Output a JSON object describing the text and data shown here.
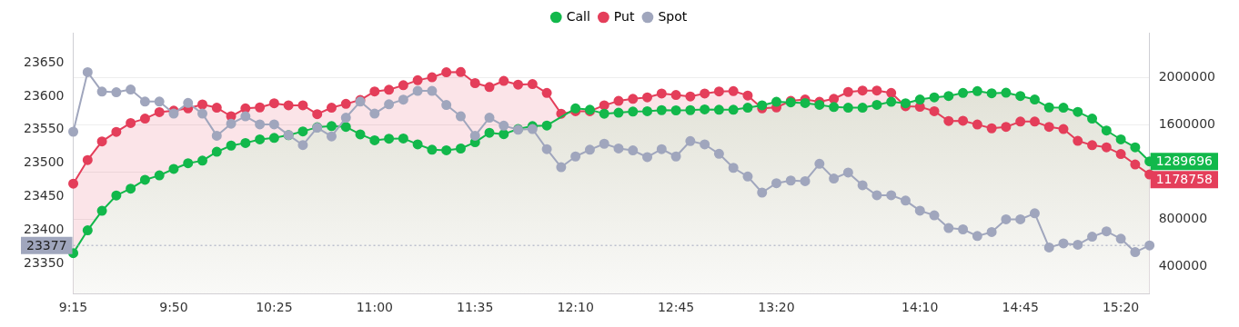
{
  "chart_data": {
    "type": "line",
    "categories": [
      "9:15",
      null,
      null,
      null,
      null,
      null,
      null,
      "9:50",
      null,
      null,
      null,
      null,
      null,
      null,
      "10:25",
      null,
      null,
      null,
      null,
      null,
      null,
      "11:00",
      null,
      null,
      null,
      null,
      null,
      null,
      "11:35",
      null,
      null,
      null,
      null,
      null,
      null,
      "12:10",
      null,
      null,
      null,
      null,
      null,
      null,
      "12:45",
      null,
      null,
      null,
      null,
      null,
      null,
      "13:20",
      null,
      null,
      null,
      null,
      null,
      null,
      null,
      null,
      null,
      "14:10",
      null,
      null,
      null,
      null,
      null,
      null,
      "14:45",
      null,
      null,
      null,
      null,
      null,
      null,
      "15:20",
      null,
      null
    ],
    "series": [
      {
        "name": "Call",
        "type": "area",
        "axis": "y2",
        "color": "#12b84b",
        "values": [
          513000,
          706000,
          871000,
          1001000,
          1059000,
          1134000,
          1171000,
          1226000,
          1274000,
          1296000,
          1371000,
          1424000,
          1446000,
          1476000,
          1489000,
          1512000,
          1544000,
          1579000,
          1589000,
          1582000,
          1519000,
          1469000,
          1482000,
          1484000,
          1434000,
          1389000,
          1384000,
          1399000,
          1452000,
          1532000,
          1521000,
          1564000,
          1589000,
          1594000,
          null,
          1739000,
          1727000,
          1694000,
          1702000,
          1712000,
          1715000,
          1724000,
          1722000,
          1724000,
          1730000,
          1727000,
          1727000,
          1745000,
          1765000,
          1795000,
          1790000,
          1784000,
          1769000,
          1750000,
          1745000,
          1745000,
          1769000,
          1795000,
          1782000,
          1814000,
          1832000,
          1844000,
          1870000,
          1885000,
          1867000,
          1872000,
          1844000,
          1814000,
          1747000,
          1745000,
          1709000,
          1652000,
          1551000,
          1476000,
          1409000,
          1289696
        ],
        "value_labels": [
          null,
          null,
          null,
          null,
          null,
          null,
          null,
          null,
          null,
          null,
          null,
          null,
          null,
          null,
          null,
          null,
          null,
          null,
          null,
          null,
          null,
          null,
          null,
          null,
          null,
          null,
          null,
          null,
          null,
          null,
          null,
          null,
          null,
          null,
          null,
          null,
          null,
          null,
          null,
          null,
          null,
          null,
          null,
          null,
          null,
          null,
          null,
          null,
          null,
          null,
          null,
          null,
          null,
          null,
          null,
          null,
          null,
          null,
          null,
          null,
          null,
          null,
          null,
          null,
          null,
          null,
          null,
          null,
          null,
          null,
          null,
          null,
          null,
          null,
          null,
          "1289696"
        ]
      },
      {
        "name": "Put",
        "type": "area",
        "axis": "y2",
        "color": "#e43e5a",
        "values": [
          1101000,
          1301000,
          1459000,
          1540000,
          1615000,
          1652000,
          1707000,
          1720000,
          1739000,
          1772000,
          1745000,
          1672000,
          1739000,
          1747000,
          1782000,
          1765000,
          1765000,
          1690000,
          1745000,
          1777000,
          1810000,
          1882000,
          1897000,
          1935000,
          1977000,
          2002000,
          2045000,
          2047000,
          1953000,
          1920000,
          1972000,
          1940000,
          1945000,
          1870000,
          1694000,
          1715000,
          1715000,
          1765000,
          1802000,
          1820000,
          1832000,
          1865000,
          1852000,
          1840000,
          1865000,
          1882000,
          1885000,
          1848000,
          1739000,
          1747000,
          1802000,
          1814000,
          1795000,
          1820000,
          1878000,
          1890000,
          1890000,
          1870000,
          1757000,
          1752000,
          1715000,
          1632000,
          1634000,
          1602000,
          1570000,
          1582000,
          1627000,
          1627000,
          1582000,
          1564000,
          1464000,
          1427000,
          1409000,
          1352000,
          1264000,
          1178758
        ],
        "value_labels": [
          null,
          null,
          null,
          null,
          null,
          null,
          null,
          null,
          null,
          null,
          null,
          null,
          null,
          null,
          null,
          null,
          null,
          null,
          null,
          null,
          null,
          null,
          null,
          null,
          null,
          null,
          null,
          null,
          null,
          null,
          null,
          null,
          null,
          null,
          null,
          null,
          null,
          null,
          null,
          null,
          null,
          null,
          null,
          null,
          null,
          null,
          null,
          null,
          null,
          null,
          null,
          null,
          null,
          null,
          null,
          null,
          null,
          null,
          null,
          null,
          null,
          null,
          null,
          null,
          null,
          null,
          null,
          null,
          null,
          null,
          null,
          null,
          null,
          null,
          null,
          "1178758"
        ]
      },
      {
        "name": "Spot",
        "type": "line",
        "color": "#a0a6bd",
        "values": [
          23547,
          23636,
          23607,
          23606,
          23610,
          23592,
          23592,
          23574,
          23590,
          23574,
          23541,
          23559,
          23570,
          23558,
          23558,
          23542,
          23527,
          23553,
          23540,
          23568,
          23592,
          23574,
          23588,
          23595,
          23608,
          23608,
          23587,
          23570,
          23541,
          23568,
          23556,
          23550,
          23551,
          23521,
          23494,
          23510,
          23520,
          23529,
          23522,
          23519,
          23509,
          23521,
          23510,
          23533,
          23528,
          23514,
          23493,
          23480,
          23456,
          23470,
          23474,
          23473,
          23499,
          23477,
          23486,
          23467,
          23452,
          23452,
          23444,
          23429,
          23422,
          23403,
          23401,
          23391,
          23397,
          23416,
          23416,
          23425,
          23374,
          23380,
          23378,
          23390,
          23398,
          23387,
          23367,
          23377
        ]
      }
    ],
    "ylim": [
      23305,
      23695
    ],
    "yticks": [
      23350,
      23400,
      23450,
      23500,
      23550,
      23600,
      23650
    ],
    "y2lim": [
      170000,
      2380000
    ],
    "y2ticks": [
      400000,
      800000,
      {
        "value": 1200000,
        "label": null
      },
      1600000,
      2000000
    ],
    "ref_lines": [
      {
        "axis": "y",
        "value": 23377,
        "label": "23377",
        "color": "#a0a6bd",
        "line_style": "dotted"
      }
    ],
    "grid": "y",
    "legend": "top",
    "marker": "circle",
    "line_style": "solid"
  }
}
